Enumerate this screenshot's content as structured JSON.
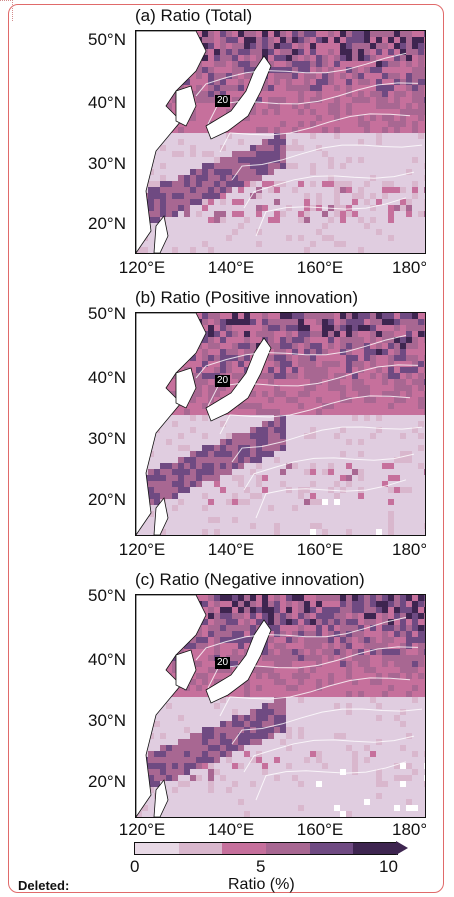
{
  "colors": {
    "ocean_low": "#e0cde0",
    "frame": "#e06a6a",
    "colorbar": [
      "#e8d9e6",
      "#d9b7cd",
      "#c6709c",
      "#a86792",
      "#6f4a82",
      "#3e2550"
    ]
  },
  "panels": [
    {
      "title": "(a) Ratio (Total)",
      "contour_label": "20"
    },
    {
      "title": "(b) Ratio (Positive innovation)",
      "contour_label": "20"
    },
    {
      "title": "(c) Ratio (Negative innovation)",
      "contour_label": "20"
    }
  ],
  "axes": {
    "y_ticks": [
      "50°N",
      "40°N",
      "30°N",
      "20°N"
    ],
    "x_ticks": [
      "120°E",
      "140°E",
      "160°E",
      "180°"
    ]
  },
  "colorbar": {
    "ticks": [
      "0",
      "5",
      "10"
    ],
    "label": "Ratio (%)"
  },
  "footer": {
    "deleted": "Deleted:"
  },
  "chart_data": [
    {
      "type": "heatmap",
      "title": "(a) Ratio (Total)",
      "xlim": [
        117,
        180
      ],
      "ylim": [
        15,
        50
      ],
      "x_ticks": [
        "120°E",
        "140°E",
        "160°E",
        "180°"
      ],
      "y_ticks": [
        "50°N",
        "40°N",
        "30°N",
        "20°N"
      ],
      "colorbar_range": [
        0,
        10
      ],
      "colorbar_label": "Ratio (%)",
      "contour_label": "20",
      "pattern": "high ratios north of 35°N, along Kuroshio and east of Japan; low values in subtropics"
    },
    {
      "type": "heatmap",
      "title": "(b) Ratio (Positive innovation)",
      "xlim": [
        117,
        180
      ],
      "ylim": [
        15,
        50
      ],
      "colorbar_range": [
        0,
        10
      ],
      "colorbar_label": "Ratio (%)",
      "contour_label": "20"
    },
    {
      "type": "heatmap",
      "title": "(c) Ratio (Negative innovation)",
      "xlim": [
        117,
        180
      ],
      "ylim": [
        15,
        50
      ],
      "colorbar_range": [
        0,
        10
      ],
      "colorbar_label": "Ratio (%)",
      "contour_label": "20"
    }
  ]
}
